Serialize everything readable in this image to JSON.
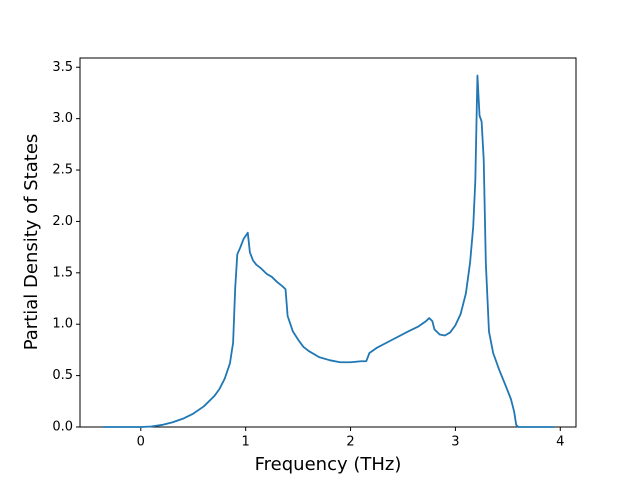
{
  "chart_data": {
    "type": "line",
    "xlabel": "Frequency (THz)",
    "ylabel": "Partial Density of States",
    "x": [
      -0.36,
      0,
      0.1,
      0.2,
      0.3,
      0.4,
      0.5,
      0.6,
      0.7,
      0.75,
      0.8,
      0.85,
      0.88,
      0.9,
      0.92,
      0.95,
      0.98,
      1.02,
      1.04,
      1.07,
      1.1,
      1.15,
      1.2,
      1.25,
      1.3,
      1.35,
      1.38,
      1.4,
      1.45,
      1.5,
      1.55,
      1.6,
      1.7,
      1.8,
      1.9,
      2.0,
      2.1,
      2.15,
      2.18,
      2.25,
      2.4,
      2.55,
      2.65,
      2.72,
      2.75,
      2.78,
      2.8,
      2.85,
      2.9,
      2.95,
      3.0,
      3.05,
      3.1,
      3.14,
      3.17,
      3.19,
      3.21,
      3.23,
      3.25,
      3.27,
      3.29,
      3.32,
      3.36,
      3.42,
      3.48,
      3.53,
      3.56,
      3.58,
      3.6,
      3.94
    ],
    "series": [
      {
        "color": "#1f77b4",
        "values": [
          0,
          0,
          0.005,
          0.02,
          0.045,
          0.08,
          0.13,
          0.2,
          0.3,
          0.37,
          0.47,
          0.62,
          0.82,
          1.35,
          1.68,
          1.75,
          1.83,
          1.89,
          1.7,
          1.62,
          1.58,
          1.54,
          1.49,
          1.46,
          1.41,
          1.37,
          1.34,
          1.08,
          0.93,
          0.85,
          0.78,
          0.74,
          0.68,
          0.65,
          0.63,
          0.63,
          0.64,
          0.64,
          0.72,
          0.77,
          0.85,
          0.93,
          0.98,
          1.03,
          1.06,
          1.03,
          0.95,
          0.9,
          0.89,
          0.92,
          0.99,
          1.1,
          1.3,
          1.6,
          1.95,
          2.4,
          3.42,
          3.03,
          2.97,
          2.6,
          1.6,
          0.93,
          0.72,
          0.55,
          0.4,
          0.27,
          0.15,
          0.02,
          0,
          0
        ]
      }
    ],
    "xlim": [
      -0.58,
      4.15
    ],
    "ylim": [
      0,
      3.59
    ],
    "xticks": [
      0,
      1,
      2,
      3,
      4
    ],
    "yticks": [
      {
        "value": 0,
        "label": "0.0"
      },
      {
        "value": 0.5,
        "label": "0.5"
      },
      {
        "value": 1,
        "label": "1.0"
      },
      {
        "value": 1.5,
        "label": "1.5"
      },
      {
        "value": 2,
        "label": "2.0"
      },
      {
        "value": 2.5,
        "label": "2.5"
      },
      {
        "value": 3,
        "label": "3.0"
      },
      {
        "value": 3.5,
        "label": "3.5"
      }
    ]
  }
}
